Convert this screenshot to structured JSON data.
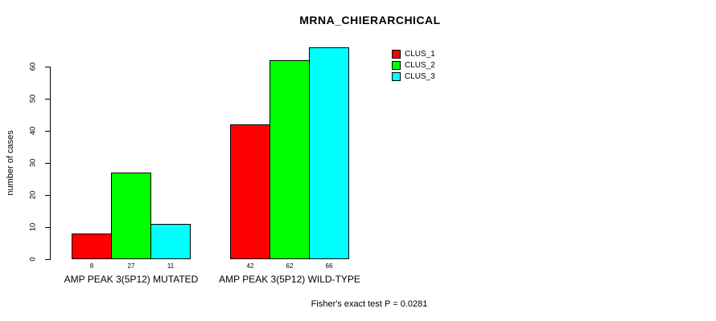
{
  "chart_data": {
    "type": "bar",
    "title": "MRNA_CHIERARCHICAL",
    "ylabel": "number of cases",
    "xlabel": "",
    "groups": [
      "AMP PEAK 3(5P12) MUTATED",
      "AMP PEAK 3(5P12) WILD-TYPE"
    ],
    "series": [
      {
        "name": "CLUS_1",
        "color": "#ff0000",
        "values": [
          8,
          42
        ]
      },
      {
        "name": "CLUS_2",
        "color": "#00ff00",
        "values": [
          27,
          62
        ]
      },
      {
        "name": "CLUS_3",
        "color": "#00ffff",
        "values": [
          11,
          66
        ]
      }
    ],
    "yticks": [
      0,
      10,
      20,
      30,
      40,
      50,
      60
    ],
    "ylim": [
      0,
      66
    ],
    "grid": false,
    "legend_position": "top-right",
    "bar_borders": "#000000",
    "annotation": "Fisher's exact test P = 0.0281"
  },
  "colors": {
    "background": "#ffffff",
    "axis": "#000000",
    "text": "#000000"
  }
}
